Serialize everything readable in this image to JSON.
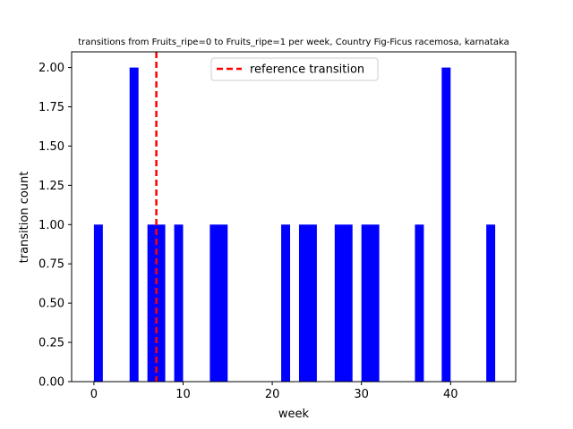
{
  "chart_data": {
    "type": "bar",
    "title": "transitions from Fruits_ripe=0 to Fruits_ripe=1 per week, Country Fig-Ficus racemosa, karnataka",
    "xlabel": "week",
    "ylabel": "transition count",
    "xlim": [
      -2.5,
      47.3
    ],
    "ylim": [
      0,
      2.1
    ],
    "x_ticks": [
      0,
      10,
      20,
      30,
      40
    ],
    "y_ticks": [
      0.0,
      0.25,
      0.5,
      0.75,
      1.0,
      1.25,
      1.5,
      1.75,
      2.0
    ],
    "y_tick_labels": [
      "0.00",
      "0.25",
      "0.50",
      "0.75",
      "1.00",
      "1.25",
      "1.50",
      "1.75",
      "2.00"
    ],
    "bar_color": "#0000ff",
    "bars": [
      {
        "start": 0.0,
        "end": 1.0,
        "value": 1
      },
      {
        "start": 4.0,
        "end": 5.0,
        "value": 2
      },
      {
        "start": 6.0,
        "end": 8.0,
        "value": 1
      },
      {
        "start": 9.0,
        "end": 10.0,
        "value": 1
      },
      {
        "start": 13.0,
        "end": 15.0,
        "value": 1
      },
      {
        "start": 21.0,
        "end": 22.0,
        "value": 1
      },
      {
        "start": 23.0,
        "end": 25.0,
        "value": 1
      },
      {
        "start": 27.0,
        "end": 29.0,
        "value": 1
      },
      {
        "start": 30.0,
        "end": 32.0,
        "value": 1
      },
      {
        "start": 36.0,
        "end": 37.0,
        "value": 1
      },
      {
        "start": 39.0,
        "end": 40.0,
        "value": 2
      },
      {
        "start": 44.0,
        "end": 45.0,
        "value": 1
      }
    ],
    "reference_line": {
      "x": 7,
      "label": "reference transition",
      "color": "#ff0000",
      "style": "dashed"
    },
    "legend": {
      "placement": "top-center",
      "entries": [
        "reference transition"
      ]
    },
    "grid": false
  }
}
